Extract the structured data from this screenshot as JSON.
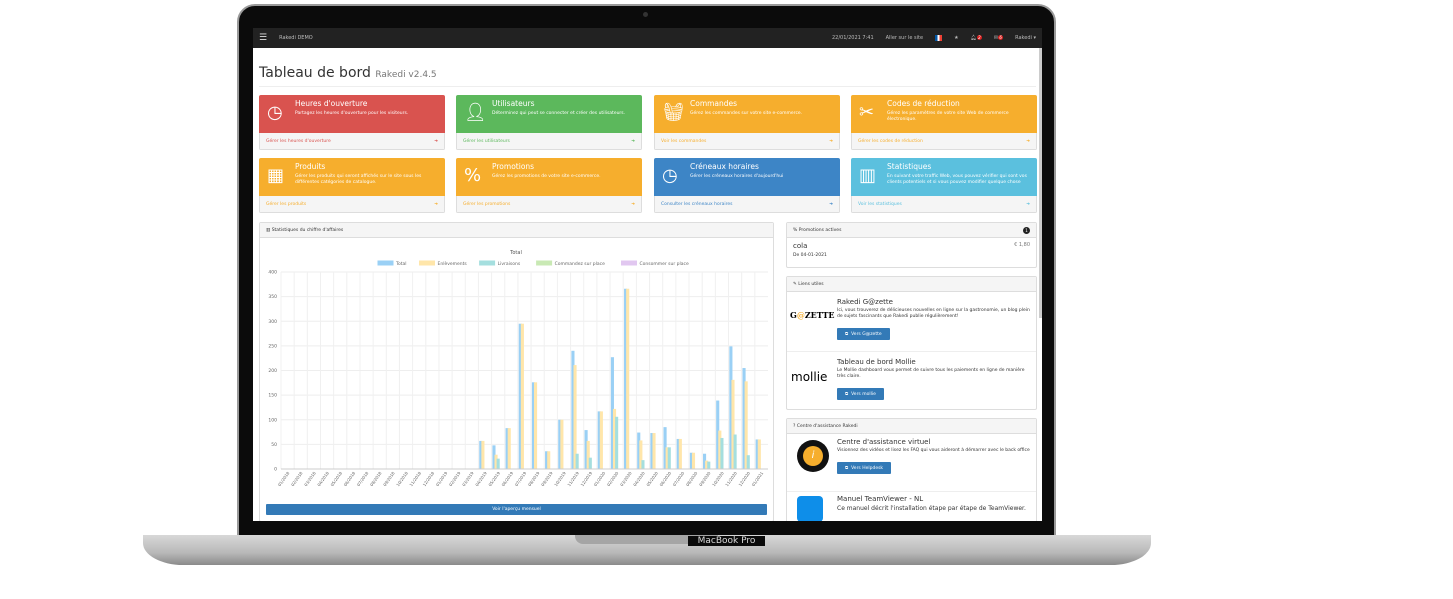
{
  "device": {
    "label": "MacBook Pro"
  },
  "topbar": {
    "app": "Rakedi DEMO",
    "datetime": "22/01/2021 7:41",
    "site_link": "Aller sur le site",
    "notif_count": "2",
    "msg_count": "6",
    "user": "Rakedi ▾"
  },
  "header": {
    "title": "Tableau de bord",
    "version": "Rakedi v2.4.5"
  },
  "cards": [
    {
      "title": "Heures d'ouverture",
      "desc": "Partagez les heures d'ouverture pour les visiteurs.",
      "link": "Gérer les heures d'ouverture",
      "color": "#d9534f",
      "icon": "clock-icon"
    },
    {
      "title": "Utilisateurs",
      "desc": "Déterminez qui peut se connecter et créer des utilisateurs.",
      "link": "Gérer les utilisateurs",
      "color": "#5cb85c",
      "icon": "user-icon"
    },
    {
      "title": "Commandes",
      "desc": "Gérez les commandes sur votre site e-commerce.",
      "link": "Voir les commandes",
      "color": "#f6ae2d",
      "icon": "basket-icon"
    },
    {
      "title": "Codes de réduction",
      "desc": "Gérez les paramètres de votre site Web de commerce électronique.",
      "link": "Gérer les codes de réduction",
      "color": "#f6ae2d",
      "icon": "scissors-icon"
    },
    {
      "title": "Produits",
      "desc": "Gérer les produits qui seront affichés sur le site sous les différentes catégories de catalogue.",
      "link": "Gérer les produits",
      "color": "#f6ae2d",
      "icon": "cubes-icon"
    },
    {
      "title": "Promotions",
      "desc": "Gérez les promotions de votre site e-commerce.",
      "link": "Gérer les promotions",
      "color": "#f6ae2d",
      "icon": "percent-icon"
    },
    {
      "title": "Créneaux horaires",
      "desc": "Gérer les créneaux horaires d'aujourd'hui",
      "link": "Consulter les créneaux horaires",
      "color": "#3d85c6",
      "icon": "clock-icon"
    },
    {
      "title": "Statistiques",
      "desc": "En suivant votre traffic Web, vous pouvez vérifier qui sont vos clients potentiels et si vous pouvez modifier quelque chose",
      "link": "Voir les statistiques",
      "color": "#5bc0de",
      "icon": "bar-chart-icon"
    }
  ],
  "chart_panel": {
    "heading": "Statistiques du chiffre d'affaires",
    "button": "Voir l'aperçu mensuel"
  },
  "chart_data": {
    "type": "bar",
    "title": "Total",
    "categories": [
      "01/2018",
      "02/2018",
      "03/2018",
      "04/2018",
      "05/2018",
      "06/2018",
      "07/2018",
      "08/2018",
      "09/2018",
      "10/2018",
      "11/2018",
      "12/2018",
      "01/2019",
      "02/2019",
      "03/2019",
      "04/2019",
      "05/2019",
      "06/2019",
      "07/2019",
      "08/2019",
      "09/2019",
      "10/2019",
      "11/2019",
      "12/2019",
      "01/2020",
      "02/2020",
      "03/2020",
      "04/2020",
      "05/2020",
      "06/2020",
      "07/2020",
      "08/2020",
      "09/2020",
      "10/2020",
      "11/2020",
      "12/2020",
      "01/2021"
    ],
    "ylim": [
      0,
      400
    ],
    "yticks": [
      0,
      50,
      100,
      150,
      200,
      250,
      300,
      350,
      400
    ],
    "grid": true,
    "legend": "top",
    "series": [
      {
        "name": "Total",
        "color": "#9ad0f5",
        "values": [
          0,
          0,
          0,
          0,
          0,
          0,
          0,
          0,
          0,
          0,
          0,
          0,
          0,
          0,
          0,
          56,
          47,
          82,
          294,
          175,
          35,
          99,
          239,
          78,
          116,
          226,
          365,
          73,
          72,
          84,
          60,
          32,
          30,
          138,
          248,
          204,
          59
        ]
      },
      {
        "name": "Enlèvements",
        "color": "#ffe6aa",
        "values": [
          0,
          0,
          0,
          0,
          0,
          0,
          0,
          0,
          0,
          0,
          0,
          0,
          0,
          0,
          0,
          56,
          28,
          82,
          294,
          175,
          35,
          99,
          210,
          56,
          116,
          121,
          365,
          57,
          72,
          43,
          60,
          32,
          16,
          77,
          180,
          177,
          59
        ]
      },
      {
        "name": "Livraisons",
        "color": "#a5dfdf",
        "values": [
          0,
          0,
          0,
          0,
          0,
          0,
          0,
          0,
          0,
          0,
          0,
          0,
          0,
          0,
          0,
          0,
          20,
          0,
          0,
          0,
          0,
          0,
          30,
          22,
          0,
          105,
          0,
          17,
          0,
          43,
          0,
          0,
          14,
          62,
          69,
          27,
          0
        ]
      },
      {
        "name": "Commandez sur place",
        "color": "#c9e9b4",
        "values": [
          0,
          0,
          0,
          0,
          0,
          0,
          0,
          0,
          0,
          0,
          0,
          0,
          0,
          0,
          0,
          0,
          0,
          0,
          0,
          0,
          0,
          0,
          0,
          0,
          0,
          0,
          0,
          0,
          0,
          0,
          0,
          0,
          0,
          0,
          0,
          0,
          0
        ]
      },
      {
        "name": "Consommer sur place",
        "color": "#e1c7f0",
        "values": [
          0,
          0,
          0,
          0,
          0,
          0,
          0,
          0,
          0,
          0,
          0,
          0,
          0,
          0,
          0,
          0,
          0,
          0,
          0,
          0,
          0,
          0,
          0,
          0,
          0,
          0,
          0,
          0,
          0,
          0,
          0,
          0,
          0,
          0,
          0,
          0,
          0
        ]
      }
    ]
  },
  "promotions": {
    "heading": "Promotions actives",
    "count": "1",
    "item": "cola",
    "price": "€ 1,80",
    "date": "De 04-01-2021"
  },
  "links": {
    "heading": "Liens utiles",
    "items": [
      {
        "logo": "G@ZETTE",
        "title": "Rakedi G@zette",
        "desc": "Ici, vous trouverez de délicieuses nouvelles en ligne sur la gastronomie, un blog plein de sujets fascinants que Rakedi publie régulièrement!",
        "button": "Vers G@zette"
      },
      {
        "logo": "mollie",
        "title": "Tableau de bord Mollie",
        "desc": "Le Mollie dashboard vous permet de suivre tous les paiements en ligne de manière très claire.",
        "button": "Vers mollie"
      }
    ]
  },
  "help": {
    "heading": "Centre d'assistance Rakedi",
    "items": [
      {
        "title": "Centre d'assistance virtuel",
        "desc": "Visionnez des vidéos et lisez les FAQ qui vous aideront à démarrer avec le back office",
        "button": "Vers Helpdesk"
      },
      {
        "title": "Manuel TeamViewer - NL",
        "desc": "Ce manuel décrit l'installation étape par étape de TeamViewer."
      }
    ]
  }
}
